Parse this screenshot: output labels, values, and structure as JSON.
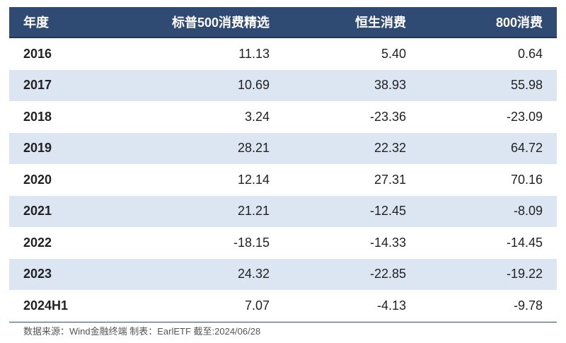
{
  "table": {
    "headers": [
      "年度",
      "标普500消费精选",
      "恒生消费",
      "800消费"
    ],
    "rows": [
      [
        "2016",
        "11.13",
        "5.40",
        "0.64"
      ],
      [
        "2017",
        "10.69",
        "38.93",
        "55.98"
      ],
      [
        "2018",
        "3.24",
        "-23.36",
        "-23.09"
      ],
      [
        "2019",
        "28.21",
        "22.32",
        "64.72"
      ],
      [
        "2020",
        "12.14",
        "27.31",
        "70.16"
      ],
      [
        "2021",
        "21.21",
        "-12.45",
        "-8.09"
      ],
      [
        "2022",
        "-18.15",
        "-14.33",
        "-14.45"
      ],
      [
        "2023",
        "24.32",
        "-22.85",
        "-19.22"
      ],
      [
        "2024H1",
        "7.07",
        "-4.13",
        "-9.78"
      ]
    ]
  },
  "footnote": "数据来源：Wind金融终端 制表：EarlETF 截至:2024/06/28",
  "colors": {
    "header_bg": "#2f4b74",
    "header_text": "#ffffff",
    "stripe_bg": "#dce6f2"
  }
}
